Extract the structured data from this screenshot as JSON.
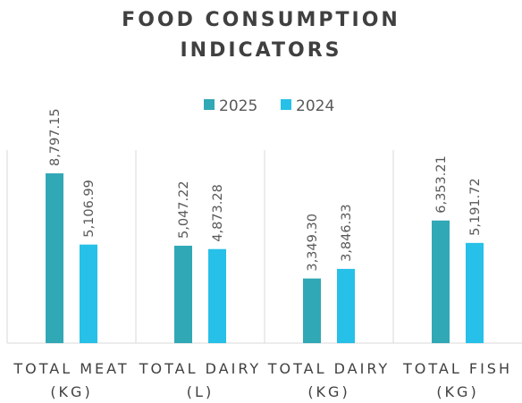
{
  "chart_data": {
    "type": "bar",
    "title": "FOOD CONSUMPTION INDICATORS",
    "categories": [
      "TOTAL MEAT (KG)",
      "TOTAL DAIRY (L)",
      "TOTAL DAIRY (KG)",
      "TOTAL FISH (KG)"
    ],
    "series": [
      {
        "name": "2025",
        "color": "#31a8b5",
        "values": [
          8797.15,
          5047.22,
          3349.3,
          6353.21
        ],
        "value_labels": [
          "8,797.15",
          "5,047.22",
          "3,349.30",
          "6,353.21"
        ]
      },
      {
        "name": "2024",
        "color": "#27c0e8",
        "values": [
          5106.99,
          4873.28,
          3846.33,
          5191.72
        ],
        "value_labels": [
          "5,106.99",
          "4,873.28",
          "3,846.33",
          "5,191.72"
        ]
      }
    ],
    "ylim": [
      0,
      10000
    ],
    "legend": "top"
  }
}
